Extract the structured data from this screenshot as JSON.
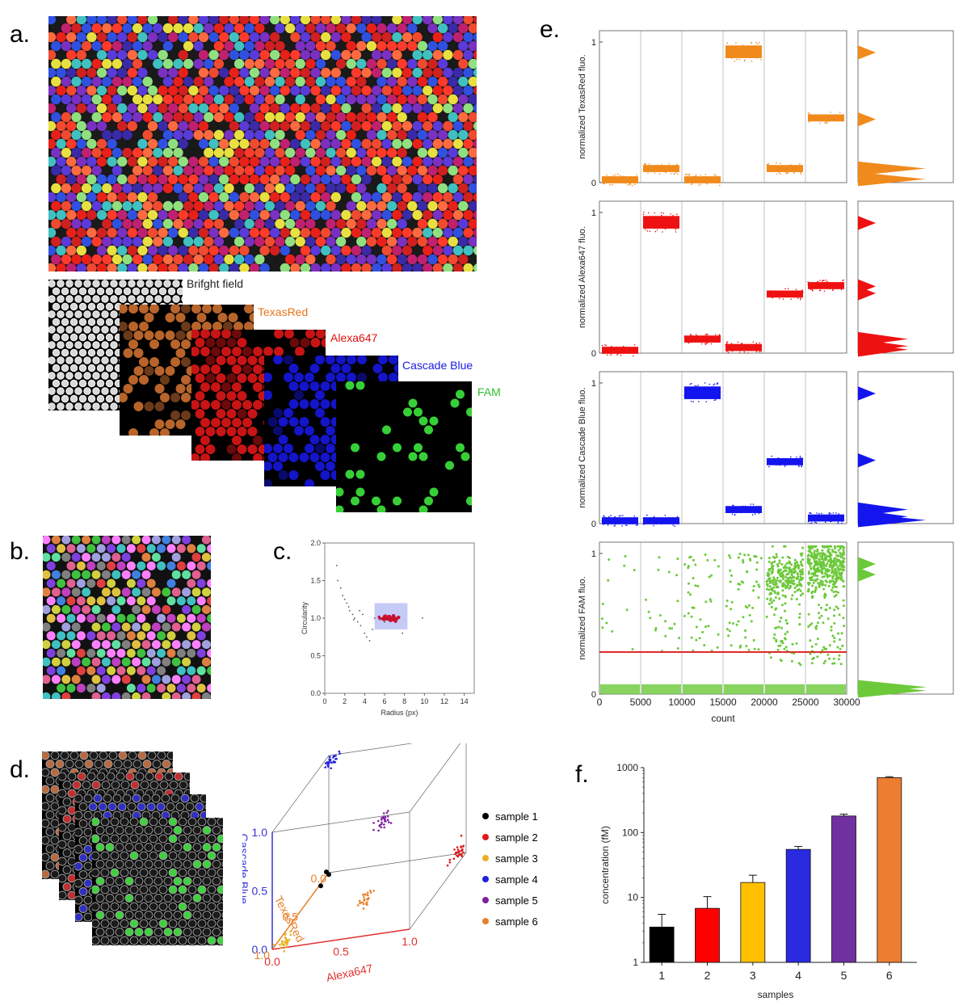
{
  "panels": {
    "a": {
      "label": "a.",
      "channels": [
        {
          "name": "Brifght field",
          "color": "#222222"
        },
        {
          "name": "TexasRed",
          "color": "#e8761a"
        },
        {
          "name": "Alexa647",
          "color": "#e01010"
        },
        {
          "name": "Cascade Blue",
          "color": "#1a1ae0"
        },
        {
          "name": "FAM",
          "color": "#2fc02f"
        }
      ]
    },
    "b": {
      "label": "b."
    },
    "c": {
      "label": "c."
    },
    "d": {
      "label": "d.",
      "legend": [
        {
          "name": "sample 1",
          "color": "#000000"
        },
        {
          "name": "sample 2",
          "color": "#e01a1a"
        },
        {
          "name": "sample 3",
          "color": "#e8b020"
        },
        {
          "name": "sample 4",
          "color": "#2020e0"
        },
        {
          "name": "sample 5",
          "color": "#8020a0"
        },
        {
          "name": "sample 6",
          "color": "#e8802a"
        }
      ]
    },
    "e": {
      "label": "e."
    },
    "f": {
      "label": "f."
    }
  },
  "chart_data": [
    {
      "id": "c",
      "type": "scatter",
      "xlabel": "Radius (px)",
      "ylabel": "Circularity",
      "xlim": [
        0,
        15
      ],
      "ylim": [
        0,
        2.0
      ],
      "xticks": [
        0,
        2,
        4,
        6,
        8,
        10,
        12,
        14
      ],
      "yticks": [
        0.0,
        0.5,
        1.0,
        1.5,
        2.0
      ],
      "highlight_box": {
        "x": [
          5,
          8.3
        ],
        "y": [
          0.85,
          1.2
        ]
      },
      "series": [
        {
          "color": "#555555",
          "points": [
            [
              1.2,
              1.7
            ],
            [
              1.3,
              1.5
            ],
            [
              1.6,
              1.4
            ],
            [
              1.8,
              1.3
            ],
            [
              2.0,
              1.25
            ],
            [
              2.2,
              1.2
            ],
            [
              2.5,
              1.1
            ],
            [
              2.8,
              1.05
            ],
            [
              3.0,
              1.0
            ],
            [
              3.3,
              0.95
            ],
            [
              3.6,
              0.9
            ],
            [
              4.0,
              0.8
            ],
            [
              4.5,
              0.7
            ],
            [
              4.2,
              0.75
            ],
            [
              2.4,
              1.15
            ],
            [
              3.8,
              1.05
            ],
            [
              5.0,
              1.0
            ],
            [
              5.5,
              0.98
            ],
            [
              4.8,
              0.85
            ],
            [
              6.0,
              0.95
            ],
            [
              9.8,
              1.0
            ],
            [
              7.8,
              0.8
            ],
            [
              3.5,
              1.1
            ],
            [
              2.9,
              0.98
            ]
          ]
        },
        {
          "color": "#c8102e",
          "points": [
            [
              6.2,
              1.0
            ],
            [
              6.5,
              1.02
            ],
            [
              6.8,
              0.98
            ],
            [
              7.0,
              1.0
            ],
            [
              7.2,
              0.99
            ],
            [
              6.6,
              0.97
            ],
            [
              7.4,
              1.01
            ],
            [
              6.9,
              1.03
            ],
            [
              7.1,
              0.96
            ],
            [
              6.4,
              1.0
            ]
          ]
        }
      ]
    },
    {
      "id": "d",
      "type": "scatter",
      "xlabel": "Alexa647",
      "ylabel": "TexasRed",
      "zlabel": "Cascade Blue",
      "xticks": [
        0.0,
        0.5,
        1.0
      ],
      "yticks": [
        0.0,
        0.5,
        1.0
      ],
      "zticks": [
        0.0,
        0.5,
        1.0
      ],
      "series": [
        {
          "name": "sample 1",
          "x": 0.0,
          "y": 0.0,
          "z": 0.0
        },
        {
          "name": "sample 2",
          "x": 0.95,
          "y": 0.02,
          "z": 0.02
        },
        {
          "name": "sample 3",
          "x": 0.05,
          "y": 0.9,
          "z": 0.0
        },
        {
          "name": "sample 4",
          "x": 0.02,
          "y": 0.02,
          "z": 0.95
        },
        {
          "name": "sample 5",
          "x": 0.45,
          "y": 0.1,
          "z": 0.45
        },
        {
          "name": "sample 6",
          "x": 0.45,
          "y": 0.45,
          "z": 0.0
        }
      ]
    },
    {
      "id": "e",
      "type": "scatter",
      "xlabel": "count",
      "xlim": [
        0,
        30000
      ],
      "xticks": [
        0,
        5000,
        10000,
        15000,
        20000,
        25000,
        30000
      ],
      "xtick_labels": [
        "0",
        "5000",
        "10000",
        "15000",
        "20000",
        "25000",
        "30000"
      ],
      "subplots": [
        {
          "ylabel": "normalized TexasRed fluo.",
          "color": "#f08a1c",
          "levels": [
            0.02,
            0.1,
            0.02,
            0.93,
            0.1,
            0.46
          ]
        },
        {
          "ylabel": "normalized Alexa647 fluo.",
          "color": "#ee1111",
          "levels": [
            0.02,
            0.93,
            0.1,
            0.04,
            0.42,
            0.48
          ]
        },
        {
          "ylabel": "normalized Cascade Blue fluo.",
          "color": "#1414ee",
          "levels": [
            0.02,
            0.02,
            0.93,
            0.1,
            0.44,
            0.04
          ]
        },
        {
          "ylabel": "normalized FAM fluo.",
          "color": "#6cc93a",
          "threshold": 0.3,
          "levels": [
            0.03,
            0.04,
            0.05,
            0.05,
            0.85,
            0.92
          ]
        }
      ],
      "yticks": [
        0,
        1
      ]
    },
    {
      "id": "f",
      "type": "bar",
      "xlabel": "samples",
      "ylabel": "concentration (fM)",
      "yscale": "log",
      "ylim": [
        1,
        1000
      ],
      "yticks": [
        1,
        10,
        100,
        1000
      ],
      "categories": [
        "1",
        "2",
        "3",
        "4",
        "5",
        "6"
      ],
      "values": [
        3.5,
        6.8,
        17,
        55,
        180,
        700
      ],
      "errors": [
        2.0,
        3.5,
        5,
        6,
        12,
        25
      ],
      "colors": [
        "#000000",
        "#ff0000",
        "#ffc000",
        "#2a2ae0",
        "#7030a0",
        "#ed7d31"
      ]
    }
  ]
}
